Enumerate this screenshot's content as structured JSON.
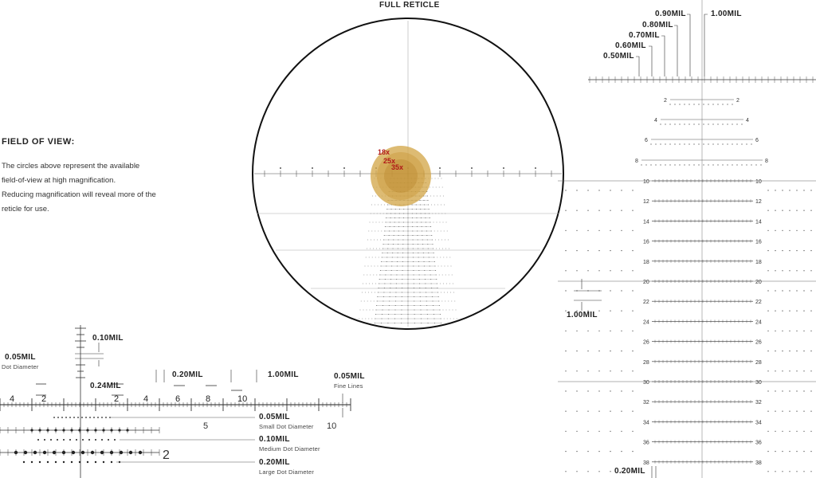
{
  "header": {
    "title": "FULL RETICLE"
  },
  "fov": {
    "title": "FIELD OF VIEW:",
    "lines": [
      "The circles above represent the available",
      "field-of-view at high magnification.",
      "Reducing magnification will reveal more of the",
      "reticle for use."
    ]
  },
  "magnifications": [
    "18x",
    "25x",
    "35x"
  ],
  "detail": {
    "mil_010": "0.10MIL",
    "dot_label": "0.05MIL",
    "dot_sub": "Dot Diameter",
    "mil_024": "0.24MIL",
    "mil_020": "0.20MIL",
    "mil_100": "1.00MIL",
    "fine_label": "0.05MIL",
    "fine_sub": "Fine Lines",
    "ruler_labels": [
      "4",
      "2",
      "2",
      "4",
      "6",
      "8",
      "10"
    ],
    "marker_5": "5",
    "marker_10": "10",
    "marker_2": "2",
    "small_dot": "0.05MIL",
    "small_dot_sub": "Small Dot Diameter",
    "medium_dot": "0.10MIL",
    "medium_dot_sub": "Medium Dot Diameter",
    "large_dot": "0.20MIL",
    "large_dot_sub": "Large Dot Diameter"
  },
  "right": {
    "labels": [
      "0.90MIL",
      "0.80MIL",
      "0.70MIL",
      "0.60MIL",
      "0.50MIL"
    ],
    "top": "1.00MIL",
    "side": "1.00MIL",
    "bottom": "0.20MIL",
    "elevation_labels": [
      "10",
      "12",
      "14",
      "16",
      "18",
      "20",
      "22",
      "24",
      "26",
      "28",
      "30",
      "32",
      "34",
      "36",
      "38"
    ],
    "upper_labels": [
      "2",
      "4",
      "6",
      "8"
    ]
  },
  "colors": {
    "accent": "#d4a84b",
    "mag_text": "#b01818",
    "ink": "#333333"
  }
}
